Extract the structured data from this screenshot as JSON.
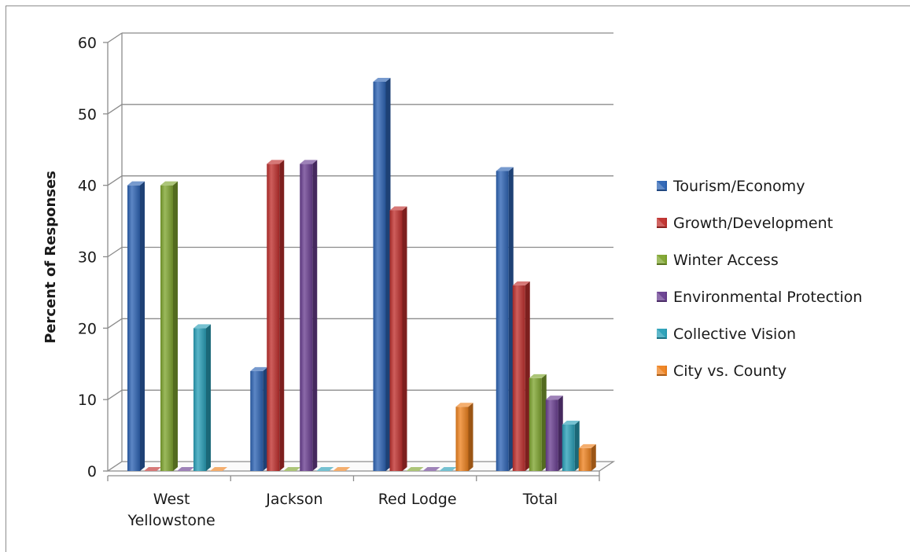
{
  "chart_data": {
    "type": "bar",
    "title": "",
    "xlabel": "",
    "ylabel": "Percent of Responses",
    "ylim": [
      0,
      60
    ],
    "yticks": [
      0,
      10,
      20,
      30,
      40,
      50,
      60
    ],
    "grid": true,
    "legend_position": "right",
    "categories": [
      [
        "West",
        "Yellowstone"
      ],
      [
        "Jackson"
      ],
      [
        "Red Lodge"
      ],
      [
        "Total"
      ]
    ],
    "series": [
      {
        "name": "Tourism/Economy",
        "color": "#2E64B4",
        "values": [
          40,
          14,
          54.5,
          42
        ]
      },
      {
        "name": "Growth/Development",
        "color": "#C0302E",
        "values": [
          0,
          43,
          36.5,
          26
        ]
      },
      {
        "name": "Winter Access",
        "color": "#7FA52F",
        "values": [
          40,
          0,
          0,
          13
        ]
      },
      {
        "name": "Environmental Protection",
        "color": "#6A3F91",
        "values": [
          0,
          43,
          0,
          10
        ]
      },
      {
        "name": "Collective Vision",
        "color": "#2AA0B8",
        "values": [
          20,
          0,
          0,
          6.5
        ]
      },
      {
        "name": "City vs. County",
        "color": "#EE8220",
        "values": [
          0,
          0,
          9,
          3.2
        ]
      }
    ]
  }
}
